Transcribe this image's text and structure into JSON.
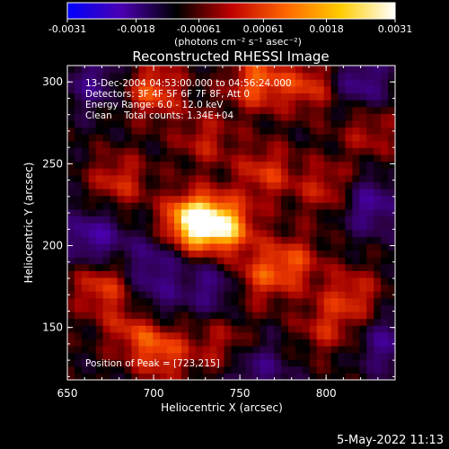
{
  "chart_data": {
    "type": "heatmap",
    "title": "Reconstructed RHESSI Image",
    "xlabel": "Heliocentric X (arcsec)",
    "ylabel": "Heliocentric Y (arcsec)",
    "xlim": [
      650,
      840
    ],
    "ylim": [
      118,
      310
    ],
    "x_ticks": [
      650,
      700,
      750,
      800
    ],
    "y_ticks": [
      150,
      200,
      250,
      300
    ],
    "colorbar": {
      "ticks": [
        "-0.0031",
        "-0.0018",
        "-0.00061",
        "0.00061",
        "0.0018",
        "0.0031"
      ],
      "range": [
        -0.0031,
        0.0031
      ],
      "units_label": "(photons cm⁻² s⁻¹ asec⁻²)",
      "colors": [
        "#0000ff",
        "#4b00b0",
        "#000000",
        "#c00000",
        "#ff6600",
        "#ffcc00",
        "#ffffff"
      ]
    },
    "info_lines": [
      "13-Dec-2004 04:53:00.000 to 04:56:24.000",
      "Detectors: 3F 4F 5F 6F 7F 8F, Att 0",
      "Energy Range: 6.0 - 12.0 keV",
      "Clean    Total counts: 1.34E+04"
    ],
    "peak_label": "Position of Peak = [723,215]",
    "peak": [
      723,
      215
    ],
    "sources": [
      {
        "x": 723,
        "y": 215,
        "amp": 0.0031
      },
      {
        "x": 742,
        "y": 212,
        "amp": 0.0022
      },
      {
        "x": 700,
        "y": 295,
        "amp": 0.0016
      },
      {
        "x": 760,
        "y": 300,
        "amp": 0.0017
      },
      {
        "x": 790,
        "y": 298,
        "amp": 0.0013
      },
      {
        "x": 680,
        "y": 240,
        "amp": 0.0012
      },
      {
        "x": 765,
        "y": 245,
        "amp": 0.0013
      },
      {
        "x": 800,
        "y": 235,
        "amp": 0.0011
      },
      {
        "x": 670,
        "y": 175,
        "amp": 0.0014
      },
      {
        "x": 688,
        "y": 150,
        "amp": 0.0012
      },
      {
        "x": 705,
        "y": 135,
        "amp": 0.0015
      },
      {
        "x": 760,
        "y": 180,
        "amp": 0.0012
      },
      {
        "x": 780,
        "y": 190,
        "amp": 0.0014
      },
      {
        "x": 815,
        "y": 170,
        "amp": 0.0012
      },
      {
        "x": 800,
        "y": 150,
        "amp": 0.001
      },
      {
        "x": 740,
        "y": 140,
        "amp": 0.0009
      },
      {
        "x": 825,
        "y": 270,
        "amp": 0.0009
      },
      {
        "x": 730,
        "y": 265,
        "amp": 0.001
      },
      {
        "x": 820,
        "y": 300,
        "amp": -0.0012
      },
      {
        "x": 665,
        "y": 205,
        "amp": -0.0014
      },
      {
        "x": 700,
        "y": 190,
        "amp": -0.001
      },
      {
        "x": 825,
        "y": 225,
        "amp": -0.0013
      },
      {
        "x": 735,
        "y": 175,
        "amp": -0.0011
      },
      {
        "x": 665,
        "y": 300,
        "amp": -0.001
      },
      {
        "x": 760,
        "y": 125,
        "amp": -0.001
      },
      {
        "x": 835,
        "y": 140,
        "amp": -0.0011
      },
      {
        "x": 700,
        "y": 165,
        "amp": -0.0008
      }
    ]
  },
  "footer": {
    "date": "5-May-2022 11:13"
  }
}
